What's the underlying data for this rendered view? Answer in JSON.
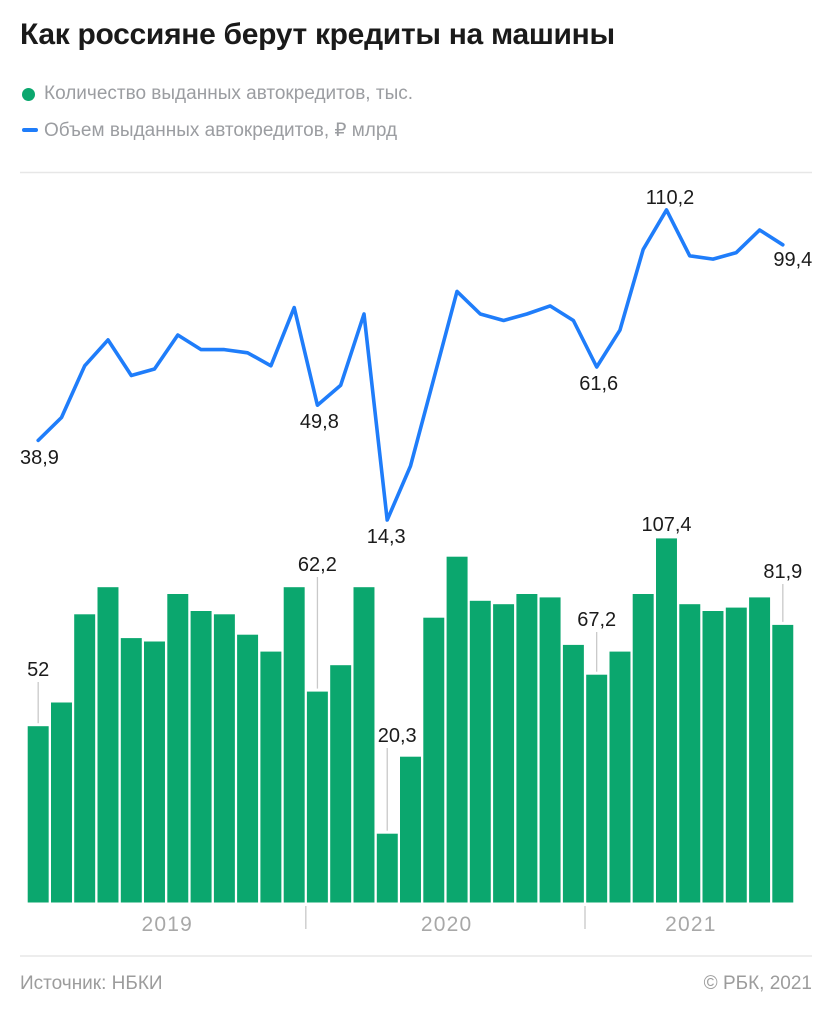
{
  "title": "Как россияне берут кредиты на машины",
  "legend": {
    "items": [
      {
        "label": "Количество выданных автокредитов, тыс.",
        "marker": "dot",
        "color": "#0ba76e"
      },
      {
        "label": "Объем выданных автокредитов, ₽ млрд",
        "marker": "dash",
        "color": "#1f7dfa"
      }
    ]
  },
  "chart_data": {
    "type": "bar",
    "subtype": "monthly bar series with overlaid line series",
    "x": {
      "start": "2019-01",
      "end": "2021-09",
      "n_points": 33,
      "year_labels": [
        "2019",
        "2020",
        "2021"
      ],
      "year_tick_after_index": [
        11,
        23
      ]
    },
    "series": [
      {
        "name": "Количество выданных автокредитов",
        "unit": "тыс.",
        "type": "bar",
        "color": "#0ba76e",
        "values": [
          52,
          59,
          85,
          93,
          78,
          77,
          91,
          86,
          85,
          79,
          74,
          93,
          62.2,
          70,
          93,
          20.3,
          43,
          84,
          102,
          89,
          88,
          91,
          90,
          76,
          67.2,
          74,
          91,
          107.4,
          88,
          86,
          87,
          90,
          81.9
        ]
      },
      {
        "name": "Объем выданных автокредитов",
        "unit": "₽ млрд",
        "type": "line",
        "color": "#1f7dfa",
        "values": [
          38.9,
          46,
          62,
          70,
          59,
          61,
          71.5,
          67,
          67,
          66,
          62,
          80,
          49.8,
          56,
          78,
          14.3,
          31,
          58,
          85,
          78,
          76,
          78,
          80.5,
          76,
          61.6,
          73,
          98,
          110.2,
          96,
          95,
          97,
          104,
          99.4
        ]
      }
    ],
    "annotations": {
      "bar": [
        {
          "index": 0,
          "text": "52"
        },
        {
          "index": 12,
          "text": "62,2"
        },
        {
          "index": 15,
          "text": "20,3"
        },
        {
          "index": 24,
          "text": "67,2"
        },
        {
          "index": 27,
          "text": "107,4"
        },
        {
          "index": 32,
          "text": "81,9"
        }
      ],
      "line": [
        {
          "index": 0,
          "text": "38,9"
        },
        {
          "index": 12,
          "text": "49,8"
        },
        {
          "index": 15,
          "text": "14,3"
        },
        {
          "index": 24,
          "text": "61,6"
        },
        {
          "index": 27,
          "text": "110,2"
        },
        {
          "index": 32,
          "text": "99,4"
        }
      ]
    },
    "ylim_bar": [
      0,
      113
    ],
    "ylim_line": [
      0,
      123
    ],
    "grid": false,
    "legend_position": "top-left"
  },
  "footer": {
    "source": "Источник: НБКИ",
    "copyright": "© РБК, 2021"
  }
}
